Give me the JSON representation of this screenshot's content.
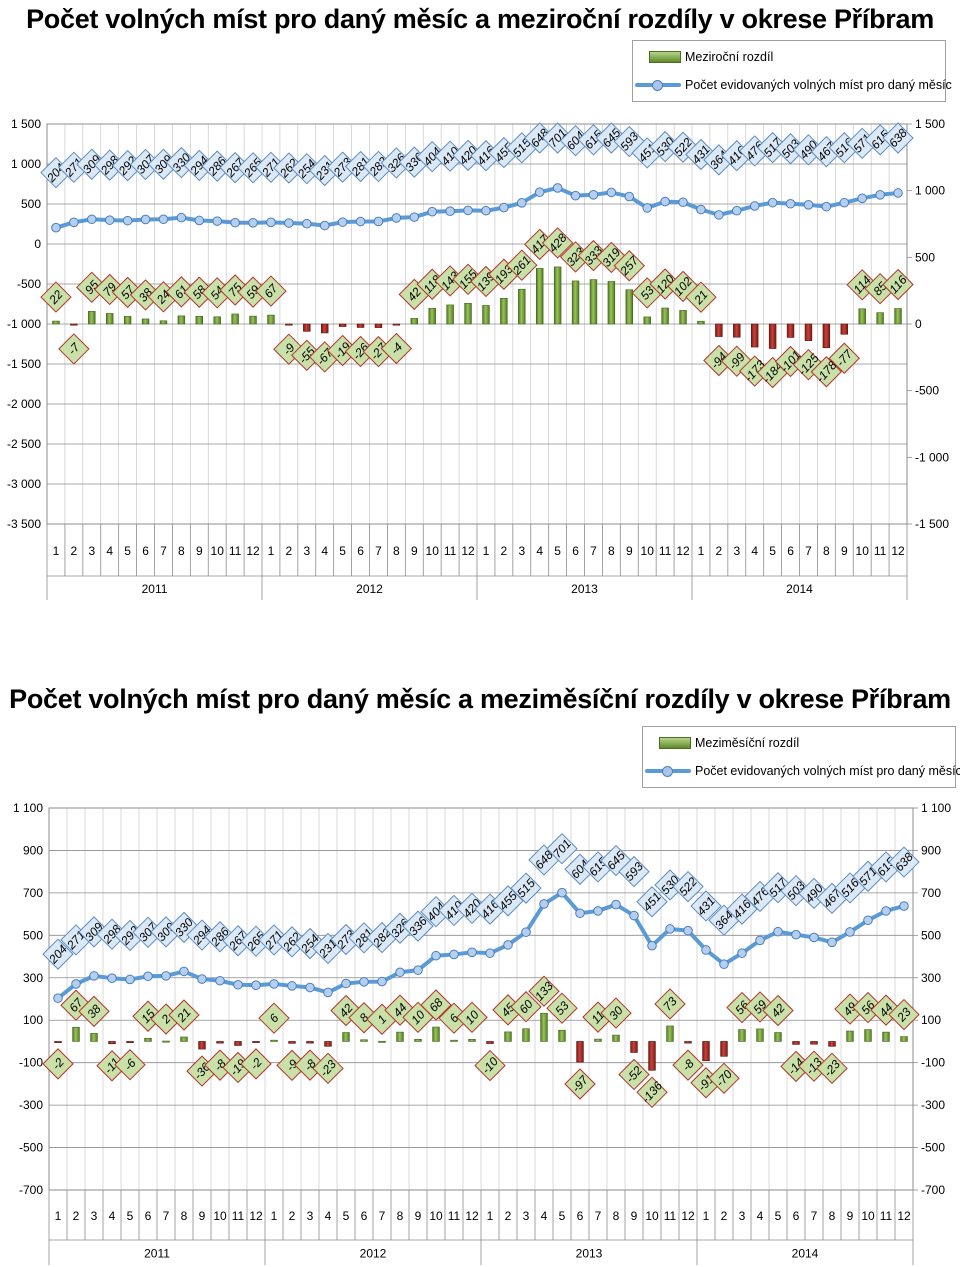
{
  "chart_data": [
    {
      "type": "bar+line",
      "title": "Počet volných míst pro daný měsíc a meziroční rozdíly v okrese Příbram",
      "legend": {
        "bar": "Meziroční rozdíl",
        "line": "Počet evidovaných volných míst pro daný měsíc",
        "placement": "top-right"
      },
      "left_axis": {
        "ticks": [
          "1 500",
          "1 000",
          "500",
          "0",
          "-500",
          "-1 000",
          "-1 500",
          "-2 000",
          "-2 500",
          "-3 000",
          "-3 500"
        ],
        "range": [
          -3500,
          1500
        ]
      },
      "right_axis": {
        "ticks": [
          "1 500",
          "1 000",
          "500",
          "0",
          "-500",
          "-1 000",
          "-1 500"
        ],
        "range": [
          -1500,
          1500
        ]
      },
      "months": [
        "1",
        "2",
        "3",
        "4",
        "5",
        "6",
        "7",
        "8",
        "9",
        "10",
        "11",
        "12"
      ],
      "years": [
        "2011",
        "2012",
        "2013",
        "2014"
      ],
      "series": [
        {
          "name": "Počet evidovaných volných míst pro daný měsíc",
          "axis": "left",
          "values": [
            204,
            271,
            309,
            298,
            292,
            307,
            309,
            330,
            294,
            286,
            267,
            265,
            271,
            262,
            254,
            231,
            273,
            281,
            282,
            326,
            336,
            404,
            410,
            420,
            416,
            455,
            515,
            648,
            701,
            604,
            615,
            645,
            593,
            451,
            530,
            522,
            431,
            364,
            416,
            476,
            517,
            503,
            490,
            467,
            516,
            571,
            615,
            638
          ]
        },
        {
          "name": "Meziroční rozdíl",
          "axis": "right",
          "values": [
            22,
            -7,
            95,
            79,
            57,
            38,
            24,
            61,
            58,
            54,
            75,
            59,
            67,
            -9,
            -55,
            -67,
            -19,
            -26,
            -27,
            -4,
            42,
            118,
            143,
            155,
            139,
            193,
            261,
            417,
            428,
            323,
            333,
            319,
            257,
            53,
            120,
            102,
            21,
            -94,
            -99,
            -173,
            -184,
            -101,
            -125,
            -178,
            -77,
            114,
            85,
            116
          ]
        }
      ],
      "bar_labels": [
        "22",
        "-7",
        "95",
        "79",
        "57",
        "38",
        "24",
        "61",
        "58",
        "54",
        "75",
        "59",
        "67",
        "",
        "",
        "",
        "",
        "",
        "",
        "",
        "",
        "",
        "",
        "",
        "",
        "",
        "",
        "",
        "",
        "",
        "",
        "",
        "",
        "",
        "",
        "",
        "",
        "",
        "",
        "",
        "",
        "",
        "",
        "",
        "",
        "",
        "",
        ""
      ],
      "bar_labels_all": [
        "22",
        "-7",
        "95",
        "79",
        "57",
        "38",
        "24",
        "61",
        "58",
        "54",
        "75",
        "59",
        "67",
        "-9",
        "-55",
        "-67",
        "-19",
        "-26",
        "-27",
        "-4",
        "42",
        "118",
        "143",
        "155",
        "139",
        "193",
        "261",
        "417",
        "428",
        "323",
        "333",
        "319",
        "257",
        "53",
        "120",
        "102",
        "21",
        "-94",
        "-99",
        "-173",
        "-184",
        "-101",
        "-125",
        "-178",
        "-77",
        "114",
        "85",
        "116"
      ],
      "line_labels": [
        "204",
        "271",
        "309",
        "298",
        "292",
        "307",
        "309",
        "330",
        "294",
        "286",
        "267",
        "265",
        "271",
        "262",
        "254",
        "231",
        "273",
        "281",
        "282",
        "326",
        "336",
        "404",
        "410",
        "420",
        "416",
        "455",
        "515",
        "648",
        "701",
        "604",
        "615",
        "645",
        "593",
        "451",
        "530",
        "522",
        "431",
        "364",
        "416",
        "476",
        "517",
        "503",
        "490",
        "467",
        "516",
        "571",
        "615",
        "638"
      ]
    },
    {
      "type": "bar+line",
      "title": "Počet volných míst pro daný měsíc a meziměsíční rozdíly v okrese Příbram",
      "legend": {
        "bar": "Meziměsíční rozdíl",
        "line": "Počet evidovaných volných míst pro daný měsíc",
        "placement": "top-right"
      },
      "left_axis": {
        "ticks": [
          "1 100",
          "900",
          "700",
          "500",
          "300",
          "100",
          "-100",
          "-300",
          "-500",
          "-700"
        ],
        "range": [
          -700,
          1100
        ]
      },
      "right_axis": {
        "ticks": [
          "1 100",
          "900",
          "700",
          "500",
          "300",
          "100",
          "-100",
          "-300",
          "-500",
          "-700"
        ],
        "range": [
          -700,
          1100
        ]
      },
      "months": [
        "1",
        "2",
        "3",
        "4",
        "5",
        "6",
        "7",
        "8",
        "9",
        "10",
        "11",
        "12"
      ],
      "years": [
        "2011",
        "2012",
        "2013",
        "2014"
      ],
      "series": [
        {
          "name": "Počet evidovaných volných míst pro daný měsíc",
          "axis": "left",
          "values": [
            204,
            271,
            309,
            298,
            292,
            307,
            309,
            330,
            294,
            286,
            267,
            265,
            271,
            262,
            254,
            231,
            273,
            281,
            282,
            326,
            336,
            404,
            410,
            420,
            416,
            455,
            515,
            648,
            701,
            604,
            615,
            645,
            593,
            451,
            530,
            522,
            431,
            364,
            416,
            476,
            517,
            503,
            490,
            467,
            516,
            571,
            615,
            638
          ]
        },
        {
          "name": "Meziměsíční rozdíl",
          "axis": "left",
          "values": [
            -2,
            67,
            38,
            -11,
            -6,
            15,
            2,
            21,
            -36,
            -8,
            -19,
            -2,
            6,
            -9,
            -8,
            -23,
            42,
            8,
            1,
            44,
            10,
            68,
            6,
            10,
            -10,
            45,
            60,
            133,
            53,
            -97,
            11,
            30,
            -52,
            -136,
            73,
            -8,
            -91,
            -70,
            56,
            59,
            42,
            -14,
            -13,
            -23,
            49,
            56,
            44,
            23
          ]
        }
      ],
      "bar_labels_all": [
        "-2",
        "67",
        "38",
        "-11",
        "-6",
        "15",
        "2",
        "21",
        "-36",
        "-8",
        "-19",
        "-2",
        "6",
        "-9",
        "-8",
        "-23",
        "42",
        "8",
        "1",
        "44",
        "10",
        "68",
        "6",
        "10",
        "-10",
        "45",
        "60",
        "133",
        "53",
        "-97",
        "11",
        "30",
        "-52",
        "-136",
        "73",
        "-8",
        "-91",
        "-70",
        "56",
        "59",
        "42",
        "-14",
        "-13",
        "-23",
        "49",
        "56",
        "44",
        "23"
      ],
      "line_labels": [
        "204",
        "271",
        "309",
        "298",
        "292",
        "307",
        "309",
        "330",
        "294",
        "286",
        "267",
        "265",
        "271",
        "262",
        "254",
        "231",
        "273",
        "281",
        "282",
        "326",
        "336",
        "404",
        "410",
        "420",
        "416",
        "455",
        "515",
        "648",
        "701",
        "604",
        "615",
        "645",
        "593",
        "451",
        "530",
        "522",
        "431",
        "364",
        "416",
        "476",
        "517",
        "503",
        "490",
        "467",
        "516",
        "571",
        "615",
        "638"
      ]
    }
  ]
}
